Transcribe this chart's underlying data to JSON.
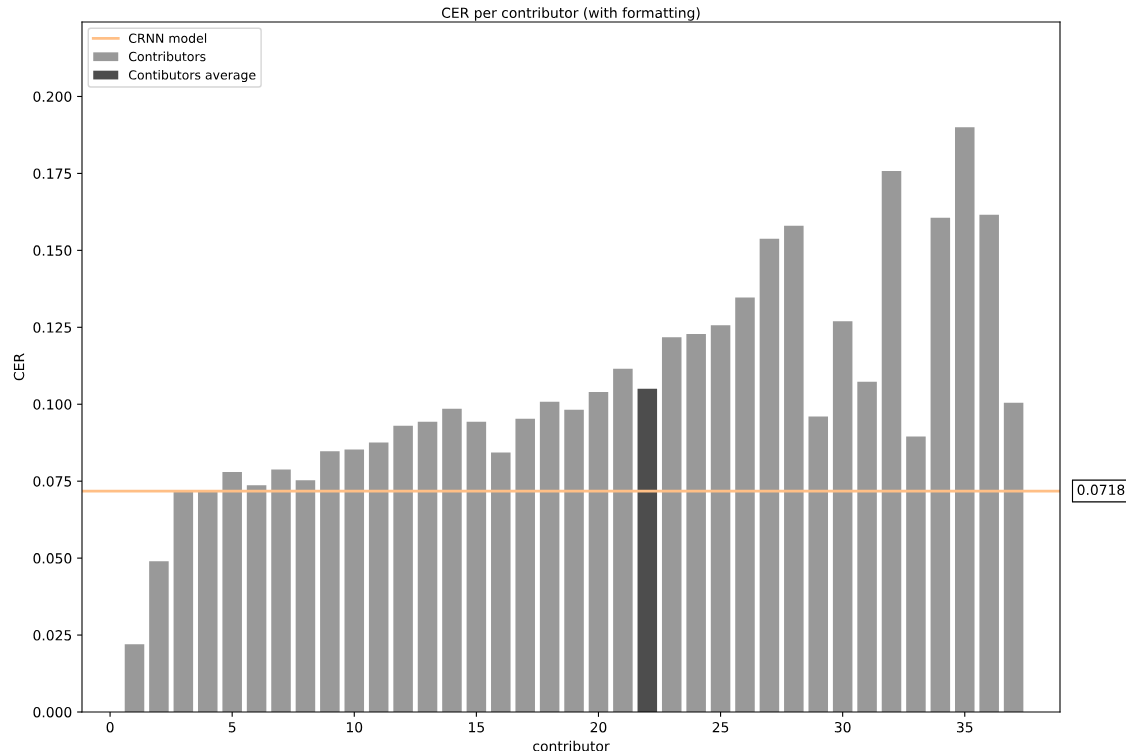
{
  "chart_data": {
    "type": "bar",
    "title": "CER per contributor (with formatting)",
    "xlabel": "contributor",
    "ylabel": "CER",
    "series": [
      {
        "name": "CRNN model",
        "type": "line",
        "color": "#ffbf86",
        "x": [
          -1.15,
          38.9
        ],
        "values": [
          0.0718,
          0.0718
        ]
      },
      {
        "name": "Contributors",
        "color": "#999999",
        "x": [
          1,
          2,
          3,
          4,
          5,
          6,
          7,
          8,
          9,
          10,
          11,
          12,
          13,
          14,
          15,
          16,
          17,
          18,
          19,
          20,
          21,
          22,
          23,
          24,
          25,
          26,
          27,
          28,
          29,
          30,
          31,
          32,
          33,
          34,
          35,
          36,
          37
        ],
        "values": [
          0.022,
          0.049,
          0.072,
          0.072,
          0.078,
          0.0737,
          0.0788,
          0.0753,
          0.0847,
          0.0853,
          0.0876,
          0.093,
          0.0943,
          0.0985,
          0.0943,
          0.0843,
          0.0953,
          0.1008,
          0.0982,
          0.104,
          0.1115,
          null,
          0.1218,
          0.1228,
          0.1257,
          0.1347,
          0.1538,
          0.158,
          0.096,
          0.127,
          0.1073,
          0.1758,
          0.0895,
          0.1606,
          0.19,
          0.1616,
          0.1005
        ]
      },
      {
        "name": "Contibutors average",
        "color": "#4d4d4d",
        "x": [
          22
        ],
        "values": [
          0.105
        ]
      }
    ],
    "annotations": [
      {
        "text": "0.0718",
        "x": 38.9,
        "y": 0.0718
      }
    ],
    "xlim": [
      -1.15,
      38.9
    ],
    "ylim": [
      0,
      0.2242
    ],
    "xticks": [
      0,
      5,
      10,
      15,
      20,
      25,
      30,
      35
    ],
    "yticks": [
      {
        "value": 0,
        "label": "0.000"
      },
      {
        "value": 0.025,
        "label": "0.025"
      },
      {
        "value": 0.05,
        "label": "0.050"
      },
      {
        "value": 0.075,
        "label": "0.075"
      },
      {
        "value": 0.1,
        "label": "0.100"
      },
      {
        "value": 0.125,
        "label": "0.125"
      },
      {
        "value": 0.15,
        "label": "0.150"
      },
      {
        "value": 0.175,
        "label": "0.175"
      },
      {
        "value": 0.2,
        "label": "0.200"
      }
    ],
    "legend": "top left"
  }
}
